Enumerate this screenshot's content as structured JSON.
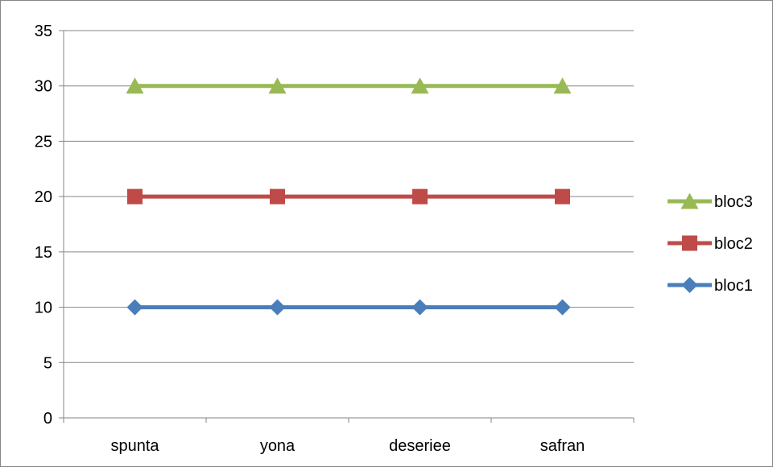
{
  "chart_data": {
    "type": "line",
    "categories": [
      "spunta",
      "yona",
      "deseriee",
      "safran"
    ],
    "series": [
      {
        "name": "bloc1",
        "values": [
          10,
          10,
          10,
          10
        ],
        "color": "#4a7ebb",
        "marker": "diamond"
      },
      {
        "name": "bloc2",
        "values": [
          20,
          20,
          20,
          20
        ],
        "color": "#be4b48",
        "marker": "square"
      },
      {
        "name": "bloc3",
        "values": [
          30,
          30,
          30,
          30
        ],
        "color": "#98b954",
        "marker": "triangle"
      }
    ],
    "ylim": [
      0,
      35
    ],
    "ytick_step": 5,
    "yticks": [
      "0",
      "5",
      "10",
      "15",
      "20",
      "25",
      "30",
      "35"
    ],
    "grid": "horizontal",
    "legend_position": "right",
    "legend_order": [
      "bloc3",
      "bloc2",
      "bloc1"
    ],
    "title": "",
    "xlabel": "",
    "ylabel": ""
  }
}
